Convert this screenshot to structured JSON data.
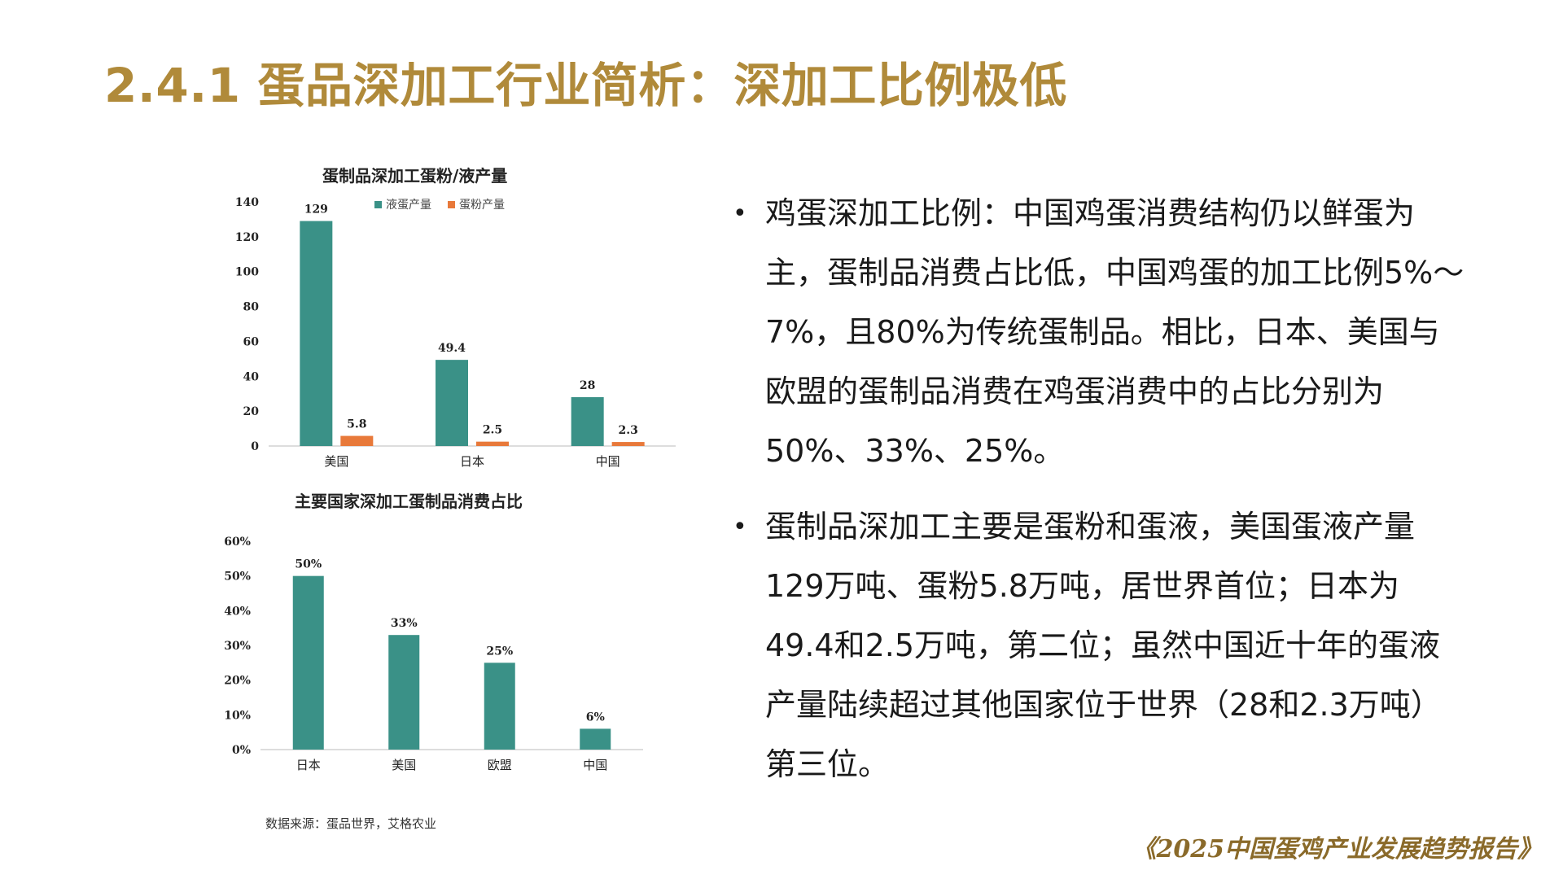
{
  "page": {
    "title": "2.4.1 蛋品深加工行业简析：深加工比例极低",
    "source_note": "数据来源：蛋品世界，艾格农业",
    "footer": "《2025中国蛋鸡产业发展趋势报告》"
  },
  "bullets": [
    "鸡蛋深加工比例：中国鸡蛋消费结构仍以鲜蛋为主，蛋制品消费占比低，中国鸡蛋的加工比例5%～7%，且80%为传统蛋制品。相比，日本、美国与欧盟的蛋制品消费在鸡蛋消费中的占比分别为50%、33%、25%。",
    "蛋制品深加工主要是蛋粉和蛋液，美国蛋液产量129万吨、蛋粉5.8万吨，居世界首位；日本为49.4和2.5万吨，第二位；虽然中国近十年的蛋液产量陆续超过其他国家位于世界（28和2.3万吨）第三位。"
  ],
  "colors": {
    "teal": "#3a9187",
    "orange": "#e8793a",
    "title_gold": "#b08a3a"
  },
  "chart_data": [
    {
      "type": "bar",
      "title": "蛋制品深加工蛋粉/液产量",
      "categories": [
        "美国",
        "日本",
        "中国"
      ],
      "series": [
        {
          "name": "液蛋产量",
          "values": [
            129,
            49.4,
            28
          ],
          "color": "#3a9187"
        },
        {
          "name": "蛋粉产量",
          "values": [
            5.8,
            2.5,
            2.3
          ],
          "color": "#e8793a"
        }
      ],
      "ylim": [
        0,
        140
      ],
      "yticks": [
        "0",
        "20",
        "40",
        "60",
        "80",
        "100",
        "120",
        "140"
      ],
      "data_labels": [
        [
          "129",
          "49.4",
          "28"
        ],
        [
          "5.8",
          "2.5",
          "2.3"
        ]
      ],
      "legend": "top-right",
      "grid": false
    },
    {
      "type": "bar",
      "title": "主要国家深加工蛋制品消费占比",
      "categories": [
        "日本",
        "美国",
        "欧盟",
        "中国"
      ],
      "series": [
        {
          "values": [
            50,
            33,
            25,
            6
          ],
          "color": "#3a9187"
        }
      ],
      "ylim": [
        0,
        60
      ],
      "yticks": [
        "0%",
        "10%",
        "20%",
        "30%",
        "40%",
        "50%",
        "60%"
      ],
      "data_labels": [
        "50%",
        "33%",
        "25%",
        "6%"
      ],
      "grid": false
    }
  ]
}
